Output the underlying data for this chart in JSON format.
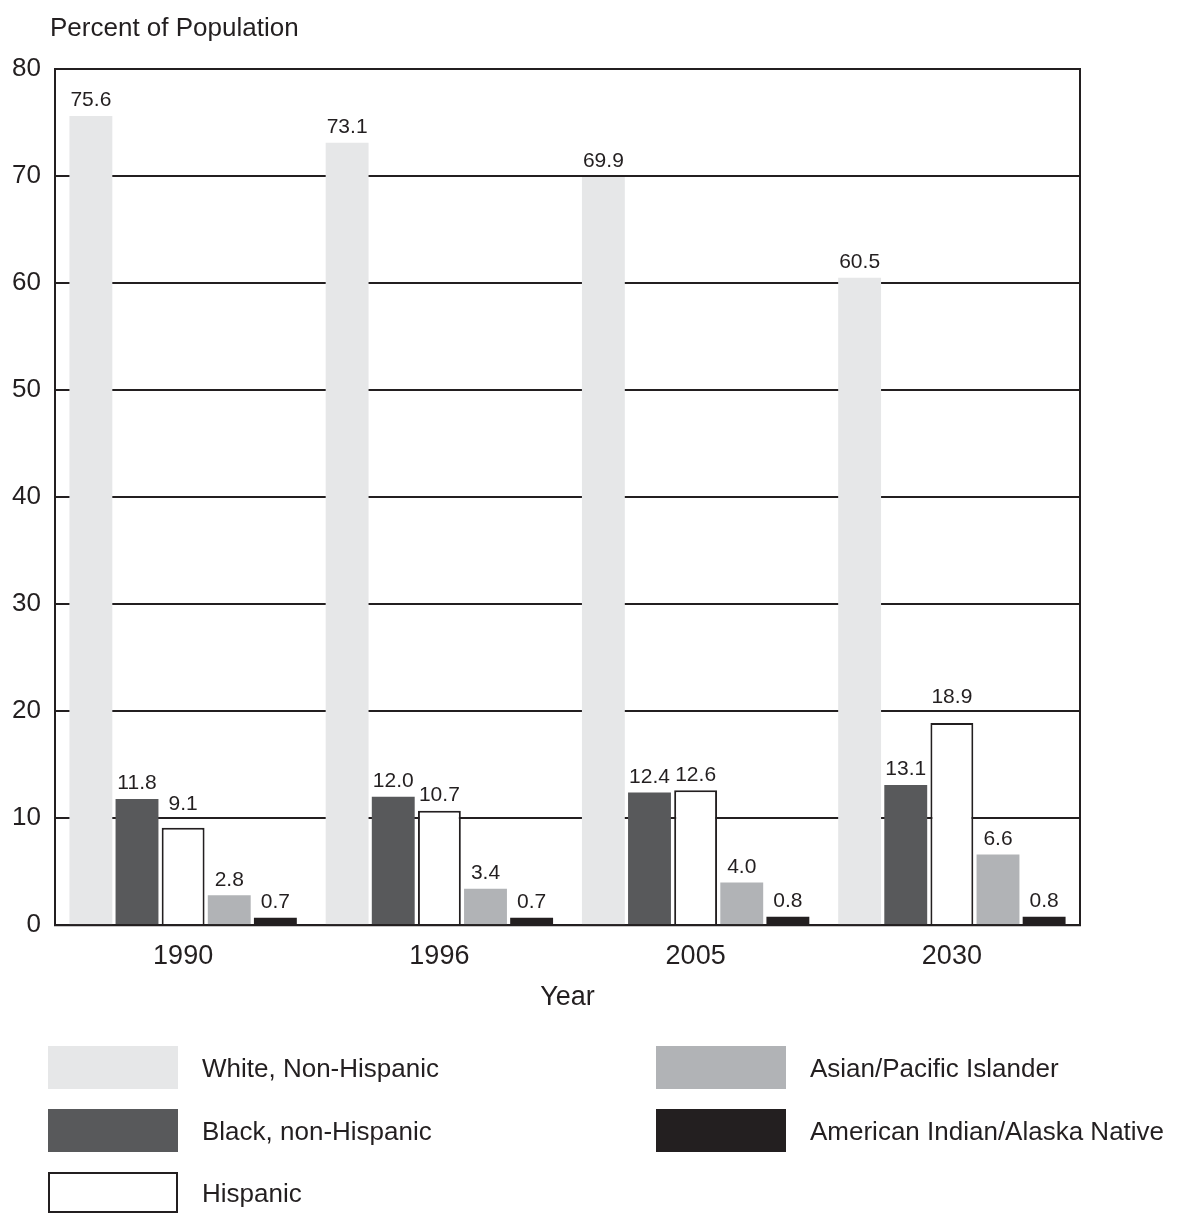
{
  "chart_data": {
    "type": "bar",
    "xlabel": "Year",
    "ylabel": "Percent of Population",
    "categories": [
      "1990",
      "1996",
      "2005",
      "2030"
    ],
    "series": [
      {
        "name": "White, Non-Hispanic",
        "color": "#e6e7e8",
        "values": [
          75.6,
          73.1,
          69.9,
          60.5
        ],
        "value_labels": [
          "75.6",
          "73.1",
          "69.9",
          "60.5"
        ]
      },
      {
        "name": "Black, non-Hispanic",
        "color": "#58595b",
        "values": [
          11.8,
          12.0,
          12.4,
          13.1
        ],
        "value_labels": [
          "11.8",
          "12.0",
          "12.4",
          "13.1"
        ]
      },
      {
        "name": "Hispanic",
        "color": "#ffffff",
        "values": [
          9.1,
          10.7,
          12.6,
          18.9
        ],
        "value_labels": [
          "9.1",
          "10.7",
          "12.6",
          "18.9"
        ]
      },
      {
        "name": "Asian/Pacific Islander",
        "color": "#b1b3b6",
        "values": [
          2.8,
          3.4,
          4.0,
          6.6
        ],
        "value_labels": [
          "2.8",
          "3.4",
          "4.0",
          "6.6"
        ]
      },
      {
        "name": "American Indian/Alaska Native",
        "color": "#231f20",
        "values": [
          0.7,
          0.7,
          0.8,
          0.8
        ],
        "value_labels": [
          "0.7",
          "0.7",
          "0.8",
          "0.8"
        ]
      }
    ],
    "ylim": [
      0,
      80
    ],
    "yticks": [
      0,
      10,
      20,
      30,
      40,
      50,
      60,
      70,
      80
    ],
    "grid": "y",
    "legend": "bottom"
  }
}
